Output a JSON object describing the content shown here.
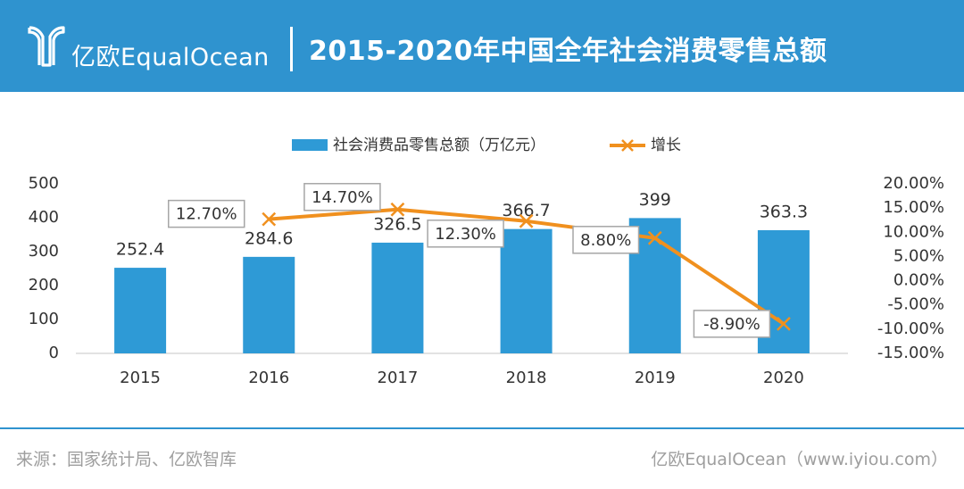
{
  "header": {
    "brand_cn": "亿欧",
    "brand_en": "EqualOcean",
    "title": "2015-2020年中国全年社会消费零售总额"
  },
  "footer": {
    "source": "来源：国家统计局、亿欧智库",
    "credit": "亿欧EqualOcean（www.iyiou.com）"
  },
  "colors": {
    "header_bg": "#2f93cf",
    "bar": "#2e9ad6",
    "line": "#f0901e",
    "text": "#333333"
  },
  "chart_data": {
    "type": "bar",
    "categories": [
      "2015",
      "2016",
      "2017",
      "2018",
      "2019",
      "2020"
    ],
    "series": [
      {
        "name": "社会消费品零售总额（万亿元）",
        "type": "bar",
        "axis": "left",
        "values": [
          252.4,
          284.6,
          326.5,
          366.7,
          399,
          363.3
        ],
        "labels": [
          "252.4",
          "284.6",
          "326.5",
          "366.7",
          "399",
          "363.3"
        ]
      },
      {
        "name": "增长",
        "type": "line",
        "axis": "right",
        "x": [
          "2016",
          "2017",
          "2018",
          "2019",
          "2020"
        ],
        "values": [
          12.7,
          14.7,
          12.3,
          8.8,
          -8.9
        ],
        "labels": [
          "12.70%",
          "14.70%",
          "12.30%",
          "8.80%",
          "-8.90%"
        ]
      }
    ],
    "left_axis": {
      "ylim": [
        0,
        500
      ],
      "ticks": [
        0,
        100,
        200,
        300,
        400,
        500
      ],
      "tick_labels": [
        "0",
        "100",
        "200",
        "300",
        "400",
        "500"
      ]
    },
    "right_axis": {
      "ylim": [
        -15,
        20
      ],
      "ticks": [
        20,
        15,
        10,
        5,
        0,
        -5,
        -10,
        -15
      ],
      "tick_labels": [
        "20.00%",
        "15.00%",
        "10.00%",
        "5.00%",
        "0.00%",
        "-5.00%",
        "-10.00%",
        "-15.00%"
      ]
    },
    "legend": {
      "position": "top-center"
    },
    "grid": false
  }
}
